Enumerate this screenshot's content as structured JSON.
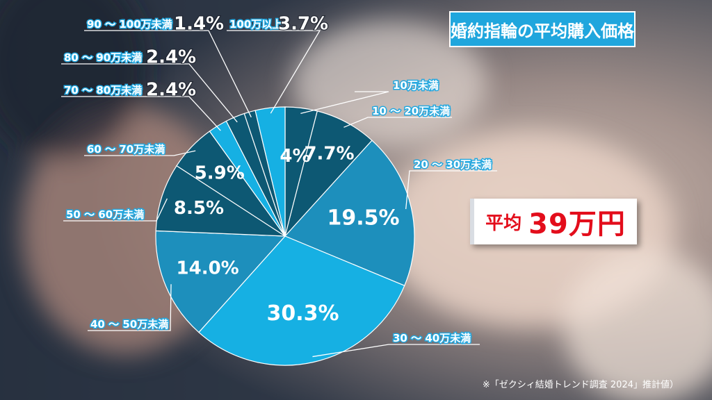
{
  "title": "婚約指輪の平均購入価格",
  "average": {
    "label": "平均",
    "value": "39万円"
  },
  "note": "※「ゼクシィ結婚トレンド調査 2024」推計値）",
  "colors": {
    "dark": "#0d5873",
    "mid": "#1d8fbc",
    "light": "#16b0e3",
    "line": "#ffffff",
    "label_bg": "#ffffff"
  },
  "chart_data": {
    "type": "pie",
    "title": "",
    "start_angle_deg": 0,
    "direction": "clockwise",
    "slices": [
      {
        "category": "10万未満",
        "value": 4.0,
        "label": "4%",
        "color": "#0d5873"
      },
      {
        "category": "10 ～ 20万未満",
        "value": 7.7,
        "label": "7.7%",
        "color": "#0d5873"
      },
      {
        "category": "20 ～ 30万未満",
        "value": 19.5,
        "label": "19.5%",
        "color": "#1d8fbc"
      },
      {
        "category": "30 ～ 40万未満",
        "value": 30.3,
        "label": "30.3%",
        "color": "#16b0e3"
      },
      {
        "category": "40 ～ 50万未満",
        "value": 14.0,
        "label": "14.0%",
        "color": "#1d8fbc"
      },
      {
        "category": "50 ～ 60万未満",
        "value": 8.5,
        "label": "8.5%",
        "color": "#0d5873"
      },
      {
        "category": "60 ～ 70万未満",
        "value": 5.9,
        "label": "5.9%",
        "color": "#0d5873"
      },
      {
        "category": "70 ～ 80万未満",
        "value": 2.4,
        "label": "2.4%",
        "color": "#16b0e3"
      },
      {
        "category": "80 ～ 90万未満",
        "value": 2.4,
        "label": "2.4%",
        "color": "#0d5873"
      },
      {
        "category": "90 ～ 100万未満",
        "value": 1.4,
        "label": "1.4%",
        "color": "#0d5873"
      },
      {
        "category": "100万以上",
        "value": 3.7,
        "label": "3.7%",
        "color": "#16b0e3"
      }
    ]
  }
}
